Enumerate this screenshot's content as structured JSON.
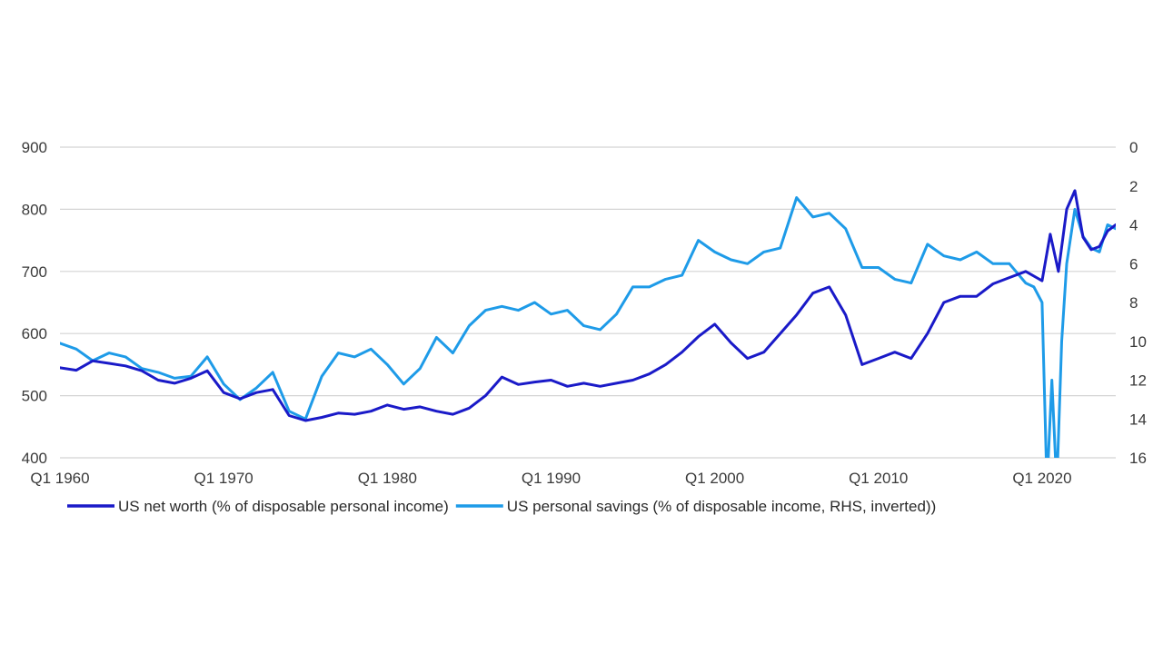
{
  "chart_data": {
    "type": "line",
    "title": "",
    "xlabel": "",
    "ylabel": "",
    "x_tick_labels": [
      "Q1 1960",
      "Q1 1970",
      "Q1 1980",
      "Q1 1990",
      "Q1 2000",
      "Q1 2010",
      "Q1 2020"
    ],
    "x_range": [
      1960,
      2024.5
    ],
    "y_left": {
      "range": [
        400,
        900
      ],
      "ticks": [
        900,
        800,
        700,
        600,
        500,
        400
      ]
    },
    "y_right": {
      "range": [
        0,
        16
      ],
      "inverted": true,
      "ticks": [
        0,
        2,
        4,
        6,
        8,
        10,
        12,
        14,
        16
      ]
    },
    "grid": true,
    "legend_position": "bottom",
    "series": [
      {
        "name": "US net worth (% of disposable personal income)",
        "axis": "left",
        "color": "#1a1ac8",
        "points": [
          [
            1960,
            545
          ],
          [
            1961,
            541
          ],
          [
            1962,
            556
          ],
          [
            1963,
            552
          ],
          [
            1964,
            548
          ],
          [
            1965,
            540
          ],
          [
            1966,
            525
          ],
          [
            1967,
            520
          ],
          [
            1968,
            528
          ],
          [
            1969,
            540
          ],
          [
            1970,
            505
          ],
          [
            1971,
            495
          ],
          [
            1972,
            505
          ],
          [
            1973,
            510
          ],
          [
            1974,
            468
          ],
          [
            1975,
            460
          ],
          [
            1976,
            465
          ],
          [
            1977,
            472
          ],
          [
            1978,
            470
          ],
          [
            1979,
            475
          ],
          [
            1980,
            485
          ],
          [
            1981,
            478
          ],
          [
            1982,
            482
          ],
          [
            1983,
            475
          ],
          [
            1984,
            470
          ],
          [
            1985,
            480
          ],
          [
            1986,
            500
          ],
          [
            1987,
            530
          ],
          [
            1988,
            518
          ],
          [
            1989,
            522
          ],
          [
            1990,
            525
          ],
          [
            1991,
            515
          ],
          [
            1992,
            520
          ],
          [
            1993,
            515
          ],
          [
            1994,
            520
          ],
          [
            1995,
            525
          ],
          [
            1996,
            535
          ],
          [
            1997,
            550
          ],
          [
            1998,
            570
          ],
          [
            1999,
            595
          ],
          [
            2000,
            615
          ],
          [
            2001,
            585
          ],
          [
            2002,
            560
          ],
          [
            2003,
            570
          ],
          [
            2004,
            600
          ],
          [
            2005,
            630
          ],
          [
            2006,
            665
          ],
          [
            2007,
            675
          ],
          [
            2008,
            630
          ],
          [
            2009,
            550
          ],
          [
            2010,
            560
          ],
          [
            2011,
            570
          ],
          [
            2012,
            560
          ],
          [
            2013,
            600
          ],
          [
            2014,
            650
          ],
          [
            2015,
            660
          ],
          [
            2016,
            660
          ],
          [
            2017,
            680
          ],
          [
            2018,
            690
          ],
          [
            2019,
            700
          ],
          [
            2020,
            685
          ],
          [
            2020.5,
            760
          ],
          [
            2021,
            700
          ],
          [
            2021.5,
            800
          ],
          [
            2022,
            830
          ],
          [
            2022.5,
            755
          ],
          [
            2023,
            735
          ],
          [
            2023.5,
            740
          ],
          [
            2024,
            765
          ],
          [
            2024.5,
            775
          ]
        ]
      },
      {
        "name": "US personal savings (% of disposable income, RHS, inverted))",
        "axis": "right",
        "color": "#1e9be8",
        "points": [
          [
            1960,
            10.1
          ],
          [
            1961,
            10.4
          ],
          [
            1962,
            11.0
          ],
          [
            1963,
            10.6
          ],
          [
            1964,
            10.8
          ],
          [
            1965,
            11.4
          ],
          [
            1966,
            11.6
          ],
          [
            1967,
            11.9
          ],
          [
            1968,
            11.8
          ],
          [
            1969,
            10.8
          ],
          [
            1970,
            12.2
          ],
          [
            1971,
            13.0
          ],
          [
            1972,
            12.4
          ],
          [
            1973,
            11.6
          ],
          [
            1974,
            13.6
          ],
          [
            1975,
            14.0
          ],
          [
            1976,
            11.8
          ],
          [
            1977,
            10.6
          ],
          [
            1978,
            10.8
          ],
          [
            1979,
            10.4
          ],
          [
            1980,
            11.2
          ],
          [
            1981,
            12.2
          ],
          [
            1982,
            11.4
          ],
          [
            1983,
            9.8
          ],
          [
            1984,
            10.6
          ],
          [
            1985,
            9.2
          ],
          [
            1986,
            8.4
          ],
          [
            1987,
            8.2
          ],
          [
            1988,
            8.4
          ],
          [
            1989,
            8.0
          ],
          [
            1990,
            8.6
          ],
          [
            1991,
            8.4
          ],
          [
            1992,
            9.2
          ],
          [
            1993,
            9.4
          ],
          [
            1994,
            8.6
          ],
          [
            1995,
            7.2
          ],
          [
            1996,
            7.2
          ],
          [
            1997,
            6.8
          ],
          [
            1998,
            6.6
          ],
          [
            1999,
            4.8
          ],
          [
            2000,
            5.4
          ],
          [
            2001,
            5.8
          ],
          [
            2002,
            6.0
          ],
          [
            2003,
            5.4
          ],
          [
            2004,
            5.2
          ],
          [
            2005,
            2.6
          ],
          [
            2006,
            3.6
          ],
          [
            2007,
            3.4
          ],
          [
            2008,
            4.2
          ],
          [
            2009,
            6.2
          ],
          [
            2010,
            6.2
          ],
          [
            2011,
            6.8
          ],
          [
            2012,
            7.0
          ],
          [
            2013,
            5.0
          ],
          [
            2014,
            5.6
          ],
          [
            2015,
            5.8
          ],
          [
            2016,
            5.4
          ],
          [
            2017,
            6.0
          ],
          [
            2018,
            6.0
          ],
          [
            2019,
            7.0
          ],
          [
            2019.5,
            7.2
          ],
          [
            2020,
            8.0
          ],
          [
            2020.3,
            17.5
          ],
          [
            2020.6,
            12.0
          ],
          [
            2020.9,
            17.5
          ],
          [
            2021.2,
            10.0
          ],
          [
            2021.5,
            6.0
          ],
          [
            2022,
            3.2
          ],
          [
            2022.5,
            4.6
          ],
          [
            2023,
            5.2
          ],
          [
            2023.5,
            5.4
          ],
          [
            2024,
            4.0
          ],
          [
            2024.5,
            4.2
          ]
        ]
      }
    ]
  }
}
